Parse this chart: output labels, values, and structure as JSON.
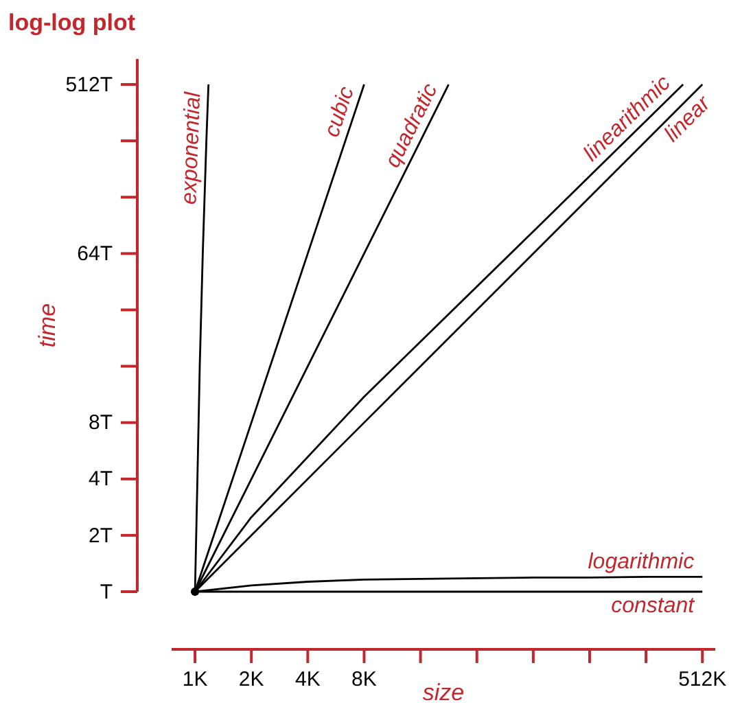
{
  "chart_data": {
    "type": "line",
    "title": "log-log plot",
    "xlabel": "size",
    "ylabel": "time",
    "log": "xy",
    "xlim": [
      0.75,
      600
    ],
    "ylim": [
      1,
      700
    ],
    "xticks": [
      {
        "value": 1,
        "label": "1K"
      },
      {
        "value": 2,
        "label": "2K"
      },
      {
        "value": 4,
        "label": "4K"
      },
      {
        "value": 8,
        "label": "8K"
      },
      {
        "value": 512,
        "label": "512K"
      }
    ],
    "yticks": [
      {
        "value": 1,
        "label": "T"
      },
      {
        "value": 2,
        "label": "2T"
      },
      {
        "value": 4,
        "label": "4T"
      },
      {
        "value": 8,
        "label": "8T"
      },
      {
        "value": 64,
        "label": "64T"
      },
      {
        "value": 512,
        "label": "512T"
      }
    ],
    "grid": false,
    "marker": "none",
    "line_style": "solid",
    "series": [
      {
        "name": "exponential",
        "color": "#000000",
        "x": [
          1,
          1.03,
          1.06,
          1.1,
          1.15,
          1.18
        ],
        "values": [
          1,
          4,
          16,
          64,
          256,
          512
        ]
      },
      {
        "name": "cubic",
        "color": "#000000",
        "x": [
          1,
          2,
          4,
          8
        ],
        "values": [
          1,
          8,
          64,
          512
        ]
      },
      {
        "name": "quadratic",
        "color": "#000000",
        "x": [
          1,
          2,
          4,
          8,
          16,
          22.6
        ],
        "values": [
          1,
          4,
          16,
          64,
          256,
          512
        ]
      },
      {
        "name": "linearithmic",
        "color": "#000000",
        "x": [
          1,
          2,
          8,
          64,
          404
        ],
        "values": [
          1,
          2.5,
          11,
          84,
          512
        ]
      },
      {
        "name": "linear",
        "color": "#000000",
        "x": [
          1,
          512
        ],
        "values": [
          1,
          512
        ]
      },
      {
        "name": "logarithmic",
        "color": "#000000",
        "x": [
          1,
          2,
          4,
          8,
          16,
          32,
          64,
          128,
          256,
          512
        ],
        "values": [
          1,
          1.08,
          1.13,
          1.16,
          1.17,
          1.18,
          1.19,
          1.19,
          1.2,
          1.2
        ]
      },
      {
        "name": "constant",
        "color": "#000000",
        "x": [
          1,
          512
        ],
        "values": [
          1,
          1
        ]
      },
      {
        "type": "scatter",
        "marker": "circle",
        "color": "#000000",
        "x": [
          1
        ],
        "values": [
          1
        ]
      }
    ]
  }
}
